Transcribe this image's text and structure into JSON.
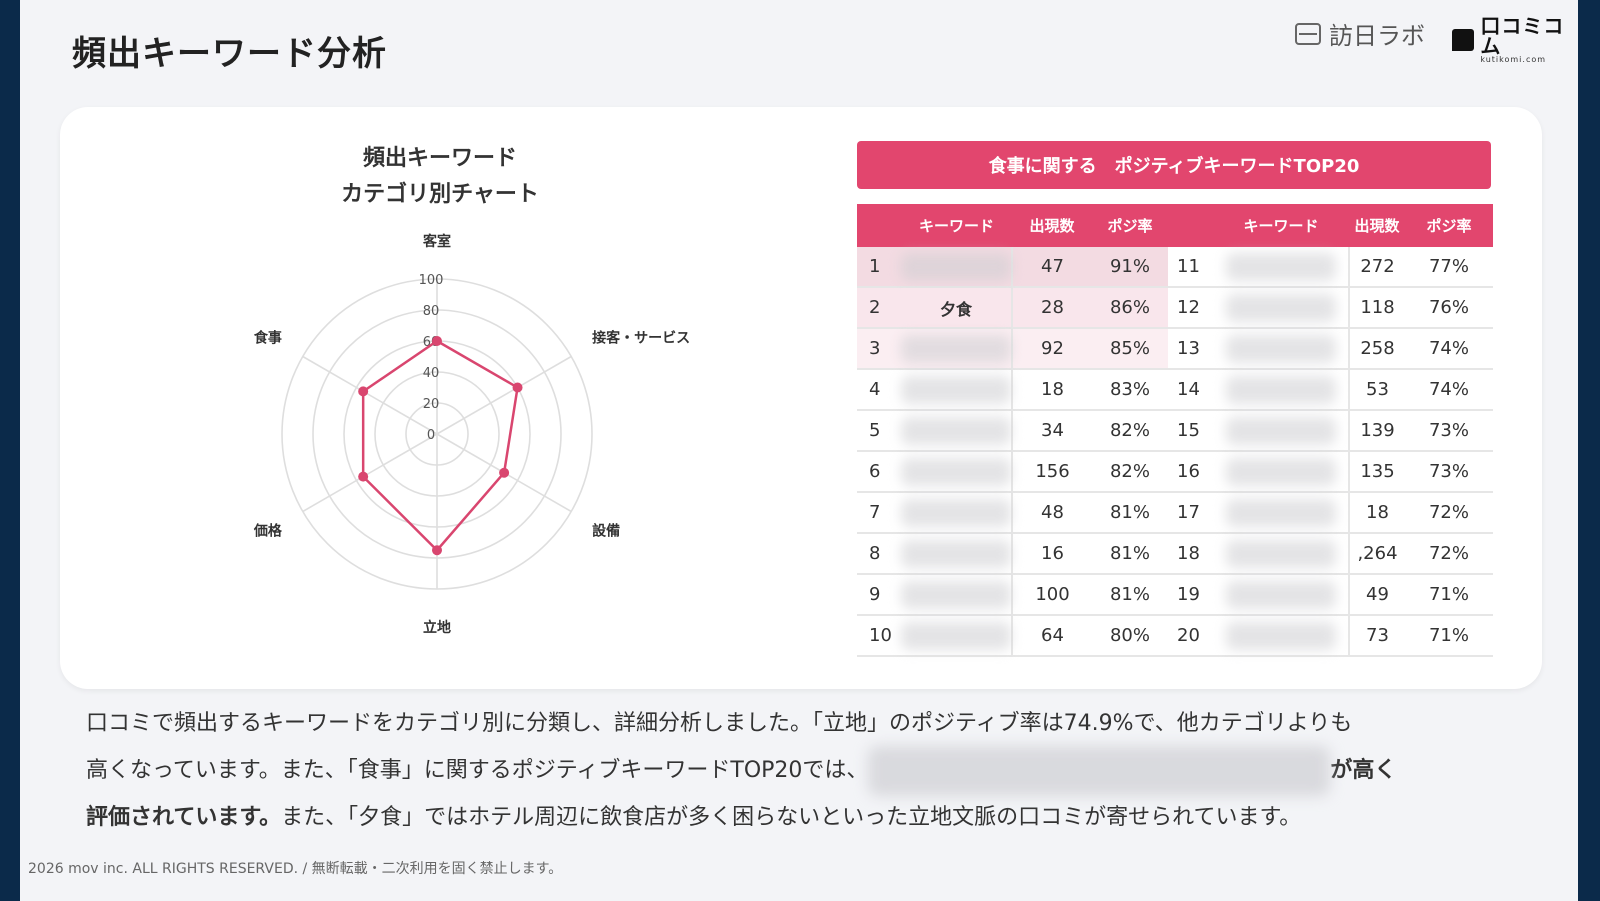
{
  "page": {
    "title": "頻出キーワード分析",
    "brand_labo": "訪日ラボ",
    "brand_kuchikomi": "口コミコム",
    "brand_kuchikomi_sub": "kutikomi.com"
  },
  "chart_data": {
    "type": "radar",
    "title_line1": "頻出キーワード",
    "title_line2": "カテゴリ別チャート",
    "axes": [
      "客室",
      "接客・サービス",
      "設備",
      "立地",
      "価格",
      "食事"
    ],
    "values": [
      60,
      60,
      50,
      75,
      55,
      55
    ],
    "range": [
      0,
      100
    ],
    "ticks": [
      "0",
      "20",
      "40",
      "60",
      "80",
      "100"
    ],
    "color": "#d9466f"
  },
  "table": {
    "banner": "食事に関する　ポジティブキーワードTOP20",
    "headers": [
      "キーワード",
      "出現数",
      "ポジ率"
    ],
    "left_rows": [
      {
        "rank": "1",
        "keyword": "",
        "count": "47",
        "rate": "91%"
      },
      {
        "rank": "2",
        "keyword": "夕食",
        "count": "28",
        "rate": "86%"
      },
      {
        "rank": "3",
        "keyword": "",
        "count": "92",
        "rate": "85%"
      },
      {
        "rank": "4",
        "keyword": "",
        "count": "18",
        "rate": "83%"
      },
      {
        "rank": "5",
        "keyword": "",
        "count": "34",
        "rate": "82%"
      },
      {
        "rank": "6",
        "keyword": "",
        "count": "156",
        "rate": "82%"
      },
      {
        "rank": "7",
        "keyword": "",
        "count": "48",
        "rate": "81%"
      },
      {
        "rank": "8",
        "keyword": "",
        "count": "16",
        "rate": "81%"
      },
      {
        "rank": "9",
        "keyword": "",
        "count": "100",
        "rate": "81%"
      },
      {
        "rank": "10",
        "keyword": "",
        "count": "64",
        "rate": "80%"
      }
    ],
    "right_rows": [
      {
        "rank": "11",
        "keyword": "",
        "count": "272",
        "rate": "77%"
      },
      {
        "rank": "12",
        "keyword": "",
        "count": "118",
        "rate": "76%"
      },
      {
        "rank": "13",
        "keyword": "",
        "count": "258",
        "rate": "74%"
      },
      {
        "rank": "14",
        "keyword": "",
        "count": "53",
        "rate": "74%"
      },
      {
        "rank": "15",
        "keyword": "",
        "count": "139",
        "rate": "73%"
      },
      {
        "rank": "16",
        "keyword": "",
        "count": "135",
        "rate": "73%"
      },
      {
        "rank": "17",
        "keyword": "",
        "count": "18",
        "rate": "72%"
      },
      {
        "rank": "18",
        "keyword": "",
        "count": ",264",
        "rate": "72%"
      },
      {
        "rank": "19",
        "keyword": "",
        "count": "49",
        "rate": "71%"
      },
      {
        "rank": "20",
        "keyword": "",
        "count": "73",
        "rate": "71%"
      }
    ]
  },
  "description": {
    "line1": "口コミで頻出するキーワードをカテゴリ別に分類し、詳細分析しました。「立地」のポジティブ率は74.9%で、他カテゴリよりも",
    "line2_start": "高くなっています。また、「食事」に関するポジティブキーワードTOP20では、",
    "line2_bold": "が高く",
    "line3_bold": "評価されています。",
    "line3_rest": "また、「夕食」ではホテル周辺に飲食店が多く困らないといった立地文脈の口コミが寄せられています。"
  },
  "footer": "2026 mov inc. ALL RIGHTS RESERVED. / 無断転載・二次利用を固く禁止します。",
  "colors": {
    "accent": "#e2466e",
    "background": "#f3f4f7",
    "frame": "#0b2a4a"
  }
}
